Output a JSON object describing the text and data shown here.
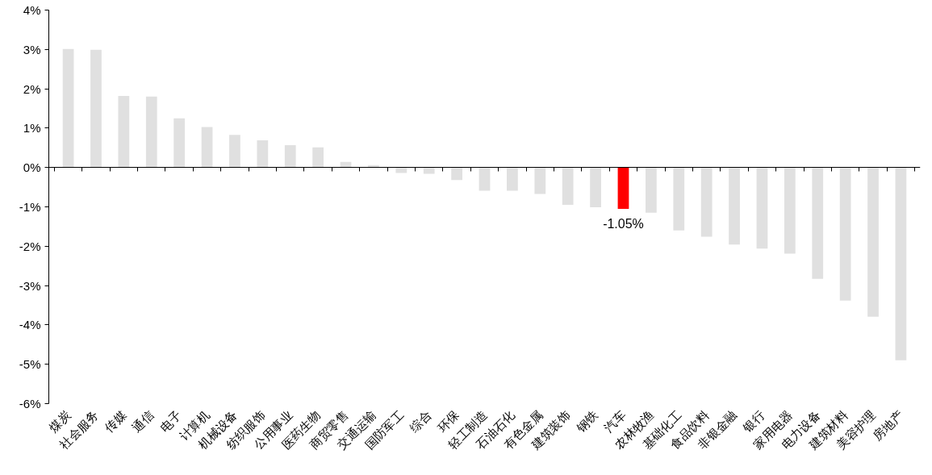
{
  "chart_data": {
    "type": "bar",
    "categories": [
      "煤炭",
      "社会服务",
      "传媒",
      "通信",
      "电子",
      "计算机",
      "机械设备",
      "纺织服饰",
      "公用事业",
      "医药生物",
      "商贸零售",
      "交通运输",
      "国防军工",
      "综合",
      "环保",
      "轻工制造",
      "石油石化",
      "有色金属",
      "建筑装饰",
      "钢铁",
      "汽车",
      "农林牧渔",
      "基础化工",
      "食品饮料",
      "非银金融",
      "银行",
      "家用电器",
      "电力设备",
      "建筑材料",
      "美容护理",
      "房地产"
    ],
    "values": [
      3.01,
      2.99,
      1.82,
      1.8,
      1.25,
      1.03,
      0.83,
      0.69,
      0.57,
      0.51,
      0.14,
      0.06,
      -0.14,
      -0.16,
      -0.32,
      -0.59,
      -0.59,
      -0.67,
      -0.95,
      -1.01,
      -1.05,
      -1.15,
      -1.6,
      -1.76,
      -1.96,
      -2.06,
      -2.19,
      -2.83,
      -3.38,
      -3.79,
      -4.9
    ],
    "colors": [
      "#e0e0e0",
      "#e0e0e0",
      "#e0e0e0",
      "#e0e0e0",
      "#e0e0e0",
      "#e0e0e0",
      "#e0e0e0",
      "#e0e0e0",
      "#e0e0e0",
      "#e0e0e0",
      "#e0e0e0",
      "#e0e0e0",
      "#e0e0e0",
      "#e0e0e0",
      "#e0e0e0",
      "#e0e0e0",
      "#e0e0e0",
      "#e0e0e0",
      "#e0e0e0",
      "#e0e0e0",
      "#ff0000",
      "#e0e0e0",
      "#e0e0e0",
      "#e0e0e0",
      "#e0e0e0",
      "#e0e0e0",
      "#e0e0e0",
      "#e0e0e0",
      "#e0e0e0",
      "#e0e0e0",
      "#e0e0e0"
    ],
    "value_labels": [
      null,
      null,
      null,
      null,
      null,
      null,
      null,
      null,
      null,
      null,
      null,
      null,
      null,
      null,
      null,
      null,
      null,
      null,
      null,
      null,
      "-1.05%",
      null,
      null,
      null,
      null,
      null,
      null,
      null,
      null,
      null,
      null
    ],
    "ylim": [
      -6,
      4
    ],
    "yticks": [
      {
        "value": -6,
        "label": "-6%"
      },
      {
        "value": -5,
        "label": "-5%"
      },
      {
        "value": -4,
        "label": "-4%"
      },
      {
        "value": -3,
        "label": "-3%"
      },
      {
        "value": -2,
        "label": "-2%"
      },
      {
        "value": -1,
        "label": "-1%"
      },
      {
        "value": 0,
        "label": "0%"
      },
      {
        "value": 1,
        "label": "1%"
      },
      {
        "value": 2,
        "label": "2%"
      },
      {
        "value": 3,
        "label": "3%"
      },
      {
        "value": 4,
        "label": "4%"
      }
    ]
  }
}
